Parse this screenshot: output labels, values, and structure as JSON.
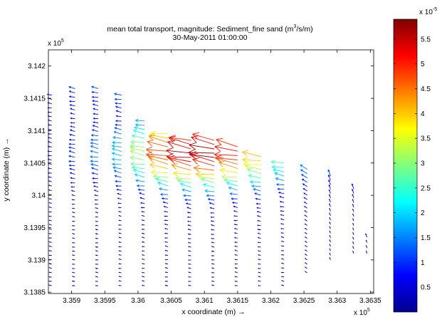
{
  "chart_data": {
    "type": "quiver",
    "title": "mean total transport, magnitude: Sediment_fine sand (m",
    "title_sup": "3",
    "title_end": "/s/m)",
    "subtitle": "30-May-2011 01:00:00",
    "xlabel": "x coordinate (m) →",
    "ylabel": "y coordinate (m) →",
    "x_multiplier": "x 10",
    "x_multiplier_exp": "5",
    "y_multiplier": "x 10",
    "y_multiplier_exp": "5",
    "xlim": [
      3.35865,
      3.36355
    ],
    "ylim": [
      3.13848,
      3.14225
    ],
    "xticks": [
      3.359,
      3.3595,
      3.36,
      3.3605,
      3.361,
      3.3615,
      3.362,
      3.3625,
      3.363,
      3.3635
    ],
    "xtick_labels": [
      "3.359",
      "3.3595",
      "3.36",
      "3.3605",
      "3.361",
      "3.3615",
      "3.362",
      "3.3625",
      "3.363",
      "3.3635"
    ],
    "yticks": [
      3.1385,
      3.139,
      3.1395,
      3.14,
      3.1405,
      3.141,
      3.1415,
      3.142
    ],
    "ytick_labels": [
      "3.1385",
      "3.139",
      "3.1395",
      "3.14",
      "3.1405",
      "3.141",
      "3.1415",
      "3.142"
    ],
    "colorbar": {
      "colormap": "jet",
      "range": [
        0,
        5.9
      ],
      "multiplier": "x 10",
      "multiplier_exp": "-5",
      "ticks": [
        0.5,
        1,
        1.5,
        2,
        2.5,
        3,
        3.5,
        4,
        4.5,
        5,
        5.5
      ],
      "tick_labels": [
        "0.5",
        "1",
        "1.5",
        "2",
        "2.5",
        "3",
        "3.5",
        "4",
        "4.5",
        "5",
        "5.5"
      ]
    },
    "grid": false,
    "magnitude_peak": {
      "x": 3.3611,
      "y": 3.14065,
      "value": 5.7
    },
    "columns": [
      {
        "x": 3.3587,
        "y_top": 3.14155,
        "y_bottom": 3.1386,
        "direction": "west",
        "peak": 1.2
      },
      {
        "x": 3.35905,
        "y_top": 3.14165,
        "y_bottom": 3.1386,
        "direction": "west",
        "peak": 2.2
      },
      {
        "x": 3.3594,
        "y_top": 3.14165,
        "y_bottom": 3.1386,
        "direction": "west",
        "peak": 2.5
      },
      {
        "x": 3.35975,
        "y_top": 3.14155,
        "y_bottom": 3.1386,
        "direction": "west",
        "peak": 2.6
      },
      {
        "x": 3.3601,
        "y_top": 3.14115,
        "y_bottom": 3.1386,
        "direction": "west",
        "peak": 3.8
      },
      {
        "x": 3.36045,
        "y_top": 3.14095,
        "y_bottom": 3.1386,
        "direction": "west",
        "peak": 5.2
      },
      {
        "x": 3.3608,
        "y_top": 3.14085,
        "y_bottom": 3.1386,
        "direction": "west",
        "peak": 5.6
      },
      {
        "x": 3.36115,
        "y_top": 3.14085,
        "y_bottom": 3.1386,
        "direction": "west",
        "peak": 5.7
      },
      {
        "x": 3.3615,
        "y_top": 3.14075,
        "y_bottom": 3.1386,
        "direction": "west",
        "peak": 5.3
      },
      {
        "x": 3.36185,
        "y_top": 3.1406,
        "y_bottom": 3.1386,
        "direction": "west",
        "peak": 4.6
      },
      {
        "x": 3.3622,
        "y_top": 3.1405,
        "y_bottom": 3.1386,
        "direction": "west",
        "peak": 3.6
      },
      {
        "x": 3.36255,
        "y_top": 3.1404,
        "y_bottom": 3.1388,
        "direction": "north-west",
        "peak": 2.8
      },
      {
        "x": 3.3629,
        "y_top": 3.1403,
        "y_bottom": 3.139,
        "direction": "north",
        "peak": 2.3
      },
      {
        "x": 3.36325,
        "y_top": 3.1401,
        "y_bottom": 3.1391,
        "direction": "north",
        "peak": 1.6
      },
      {
        "x": 3.36345,
        "y_top": 3.13935,
        "y_bottom": 3.1391,
        "direction": "north",
        "peak": 0.8
      }
    ]
  }
}
